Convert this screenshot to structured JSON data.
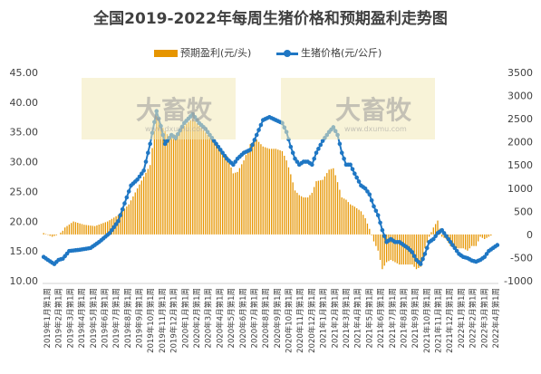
{
  "chart_data": {
    "type": "bar+line",
    "title": "全国2019-2022年每周生猪价格和预期盈利走势图",
    "legend": [
      {
        "name": "预期盈利(元/头)",
        "type": "bar",
        "axis": "right",
        "color": "#e69500"
      },
      {
        "name": "生猪价格(元/公斤)",
        "type": "line",
        "axis": "left",
        "color": "#1f77c4"
      }
    ],
    "legend_position": "top",
    "grid": false,
    "left_axis": {
      "ylim": [
        10,
        45
      ],
      "ticks": [
        "10.00",
        "15.00",
        "20.00",
        "25.00",
        "30.00",
        "35.00",
        "40.00",
        "45.00"
      ]
    },
    "right_axis": {
      "ylim": [
        -1000,
        3500
      ],
      "ticks": [
        "-1000",
        "-500",
        "0",
        "500",
        "1000",
        "1500",
        "2000",
        "2500",
        "3000",
        "3500"
      ]
    },
    "x_tick_labels": [
      "2019年1月第1周",
      "2019年2月第1周",
      "2019年3月第1周",
      "2019年4月第1周",
      "2019年5月第1周",
      "2019年6月第1周",
      "2019年7月第1周",
      "2019年8月第1周",
      "2019年9月第1周",
      "2019年10月第1周",
      "2019年11月第1周",
      "2019年12月第1周",
      "2020年1月第1周",
      "2020年2月第1周",
      "2020年3月第1周",
      "2020年4月第1周",
      "2020年5月第1周",
      "2020年6月第1周",
      "2020年7月第1周",
      "2020年8月第1周",
      "2020年9月第1周",
      "2020年10月第1周",
      "2020年11月第1周",
      "2020年12月第1周",
      "2021年1月第1周",
      "2021年2月第1周",
      "2021年3月第1周",
      "2021年4月第1周",
      "2021年5月第1周",
      "2021年6月第1周",
      "2021年7月第1周",
      "2021年8月第1周",
      "2021年9月第1周",
      "2021年10月第1周",
      "2021年11月第1周",
      "2021年12月第1周",
      "2022年1月第1周",
      "2022年2月第1周",
      "2022年3月第1周",
      "2022年4月第1周"
    ],
    "price_knots": [
      [
        0,
        14.0
      ],
      [
        2,
        13.5
      ],
      [
        5,
        12.8
      ],
      [
        7,
        13.5
      ],
      [
        9,
        13.7
      ],
      [
        12,
        15.0
      ],
      [
        17,
        15.2
      ],
      [
        22,
        15.5
      ],
      [
        26,
        16.5
      ],
      [
        31,
        18.0
      ],
      [
        35,
        20.0
      ],
      [
        38,
        23.0
      ],
      [
        41,
        26.0
      ],
      [
        44,
        27.0
      ],
      [
        47,
        28.5
      ],
      [
        50,
        33.0
      ],
      [
        53,
        38.5
      ],
      [
        55,
        36.0
      ],
      [
        57,
        33.0
      ],
      [
        60,
        34.5
      ],
      [
        62,
        34.0
      ],
      [
        66,
        36.5
      ],
      [
        70,
        38.0
      ],
      [
        73,
        36.5
      ],
      [
        76,
        35.5
      ],
      [
        79,
        34.0
      ],
      [
        82,
        32.5
      ],
      [
        86,
        30.5
      ],
      [
        89,
        29.5
      ],
      [
        91,
        30.5
      ],
      [
        94,
        31.5
      ],
      [
        97,
        32.0
      ],
      [
        100,
        34.5
      ],
      [
        103,
        37.0
      ],
      [
        106,
        37.5
      ],
      [
        109,
        37.0
      ],
      [
        112,
        36.5
      ],
      [
        114,
        35.0
      ],
      [
        116,
        32.5
      ],
      [
        118,
        30.5
      ],
      [
        120,
        29.5
      ],
      [
        122,
        30.0
      ],
      [
        124,
        30.0
      ],
      [
        126,
        29.5
      ],
      [
        128,
        31.5
      ],
      [
        131,
        33.5
      ],
      [
        134,
        35.0
      ],
      [
        136,
        35.8
      ],
      [
        138,
        34.5
      ],
      [
        140,
        31.5
      ],
      [
        142,
        29.5
      ],
      [
        144,
        29.5
      ],
      [
        146,
        28.0
      ],
      [
        149,
        26.0
      ],
      [
        151,
        25.5
      ],
      [
        153,
        24.5
      ],
      [
        155,
        22.5
      ],
      [
        157,
        21.0
      ],
      [
        159,
        18.5
      ],
      [
        161,
        16.5
      ],
      [
        163,
        17.0
      ],
      [
        165,
        16.5
      ],
      [
        167,
        16.5
      ],
      [
        169,
        16.0
      ],
      [
        171,
        15.5
      ],
      [
        173,
        14.8
      ],
      [
        175,
        13.5
      ],
      [
        177,
        12.8
      ],
      [
        179,
        14.5
      ],
      [
        181,
        16.5
      ],
      [
        183,
        17.0
      ],
      [
        185,
        18.0
      ],
      [
        187,
        18.5
      ],
      [
        189,
        17.5
      ],
      [
        191,
        16.5
      ],
      [
        193,
        15.5
      ],
      [
        195,
        14.5
      ],
      [
        197,
        14.0
      ],
      [
        199,
        13.8
      ],
      [
        201,
        13.4
      ],
      [
        203,
        13.2
      ],
      [
        205,
        13.5
      ],
      [
        207,
        14.0
      ],
      [
        209,
        15.0
      ],
      [
        211,
        15.5
      ],
      [
        213,
        16.0
      ]
    ],
    "profit_knots": [
      [
        0,
        30
      ],
      [
        4,
        -50
      ],
      [
        7,
        0
      ],
      [
        9,
        80
      ],
      [
        10,
        150
      ],
      [
        14,
        280
      ],
      [
        19,
        210
      ],
      [
        24,
        180
      ],
      [
        30,
        280
      ],
      [
        35,
        420
      ],
      [
        40,
        650
      ],
      [
        45,
        1080
      ],
      [
        50,
        1500
      ],
      [
        53,
        2600
      ],
      [
        56,
        2300
      ],
      [
        59,
        2100
      ],
      [
        62,
        2150
      ],
      [
        66,
        2350
      ],
      [
        70,
        2500
      ],
      [
        73,
        2350
      ],
      [
        76,
        2200
      ],
      [
        79,
        2050
      ],
      [
        82,
        1850
      ],
      [
        86,
        1700
      ],
      [
        89,
        1320
      ],
      [
        91,
        1350
      ],
      [
        94,
        1600
      ],
      [
        97,
        1950
      ],
      [
        100,
        2050
      ],
      [
        103,
        1900
      ],
      [
        106,
        1850
      ],
      [
        109,
        1850
      ],
      [
        112,
        1800
      ],
      [
        114,
        1600
      ],
      [
        116,
        1300
      ],
      [
        118,
        950
      ],
      [
        120,
        850
      ],
      [
        122,
        800
      ],
      [
        124,
        800
      ],
      [
        126,
        900
      ],
      [
        128,
        1150
      ],
      [
        131,
        1180
      ],
      [
        134,
        1400
      ],
      [
        136,
        1430
      ],
      [
        138,
        1130
      ],
      [
        140,
        800
      ],
      [
        142,
        750
      ],
      [
        144,
        650
      ],
      [
        146,
        600
      ],
      [
        149,
        500
      ],
      [
        151,
        350
      ],
      [
        153,
        120
      ],
      [
        155,
        -150
      ],
      [
        157,
        -350
      ],
      [
        159,
        -750
      ],
      [
        161,
        -600
      ],
      [
        163,
        -550
      ],
      [
        165,
        -600
      ],
      [
        167,
        -650
      ],
      [
        169,
        -650
      ],
      [
        171,
        -650
      ],
      [
        173,
        -650
      ],
      [
        175,
        -750
      ],
      [
        177,
        -700
      ],
      [
        179,
        -300
      ],
      [
        181,
        -50
      ],
      [
        183,
        150
      ],
      [
        185,
        300
      ],
      [
        187,
        -50
      ],
      [
        189,
        -100
      ],
      [
        191,
        -250
      ],
      [
        193,
        -300
      ],
      [
        195,
        -300
      ],
      [
        197,
        -300
      ],
      [
        199,
        -350
      ],
      [
        201,
        -250
      ],
      [
        203,
        -250
      ],
      [
        205,
        -50
      ],
      [
        207,
        -100
      ],
      [
        209,
        -50
      ],
      [
        211,
        0
      ],
      [
        213,
        0
      ]
    ],
    "num_weeks": 214,
    "watermarks": [
      {
        "text": "大畜牧",
        "sub": "www.dxumu.com"
      },
      {
        "text": "大畜牧",
        "sub": "www.dxumu.com"
      }
    ]
  }
}
